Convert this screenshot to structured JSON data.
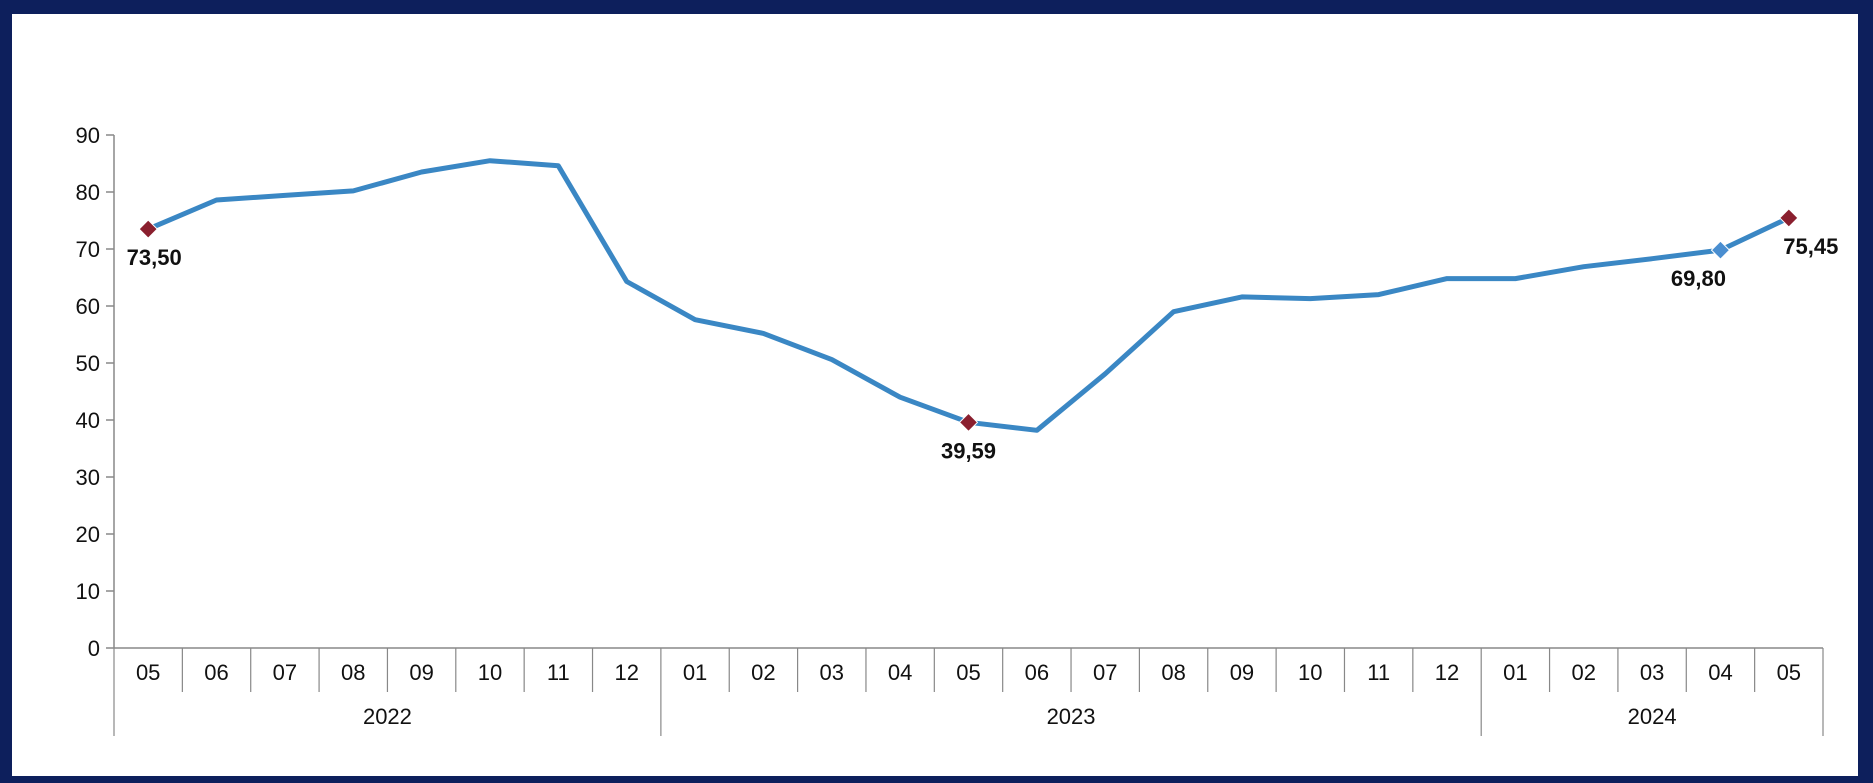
{
  "chart_data": {
    "type": "line",
    "title": "",
    "xlabel": "",
    "ylabel": "",
    "ylim": [
      0,
      90
    ],
    "y_ticks": [
      "0",
      "10",
      "20",
      "30",
      "40",
      "50",
      "60",
      "70",
      "80",
      "90"
    ],
    "grid": false,
    "line_color": "#3a87c4",
    "marker_color_highlight": "#8a1f2e",
    "marker_color_secondary": "#4a8ed0",
    "categories": [
      "05",
      "06",
      "07",
      "08",
      "09",
      "10",
      "11",
      "12",
      "01",
      "02",
      "03",
      "04",
      "05",
      "06",
      "07",
      "08",
      "09",
      "10",
      "11",
      "12",
      "01",
      "02",
      "03",
      "04",
      "05"
    ],
    "years": [
      {
        "label": "2022",
        "start": 0,
        "end": 7
      },
      {
        "label": "2023",
        "start": 8,
        "end": 19
      },
      {
        "label": "2024",
        "start": 20,
        "end": 24
      }
    ],
    "series": [
      {
        "values": [
          73.5,
          78.6,
          79.4,
          80.2,
          83.5,
          85.5,
          84.6,
          64.3,
          57.6,
          55.2,
          50.6,
          44.0,
          39.59,
          38.2,
          48.1,
          59.0,
          61.6,
          61.3,
          62.0,
          64.8,
          64.8,
          66.9,
          68.3,
          69.8,
          75.45
        ]
      }
    ],
    "annotations": [
      {
        "index": 0,
        "label": "73,50",
        "marker": "highlight",
        "pos": "below"
      },
      {
        "index": 12,
        "label": "39,59",
        "marker": "highlight",
        "pos": "below"
      },
      {
        "index": 23,
        "label": "69,80",
        "marker": "secondary",
        "pos": "below"
      },
      {
        "index": 24,
        "label": "75,45",
        "marker": "highlight",
        "pos": "below"
      }
    ]
  }
}
